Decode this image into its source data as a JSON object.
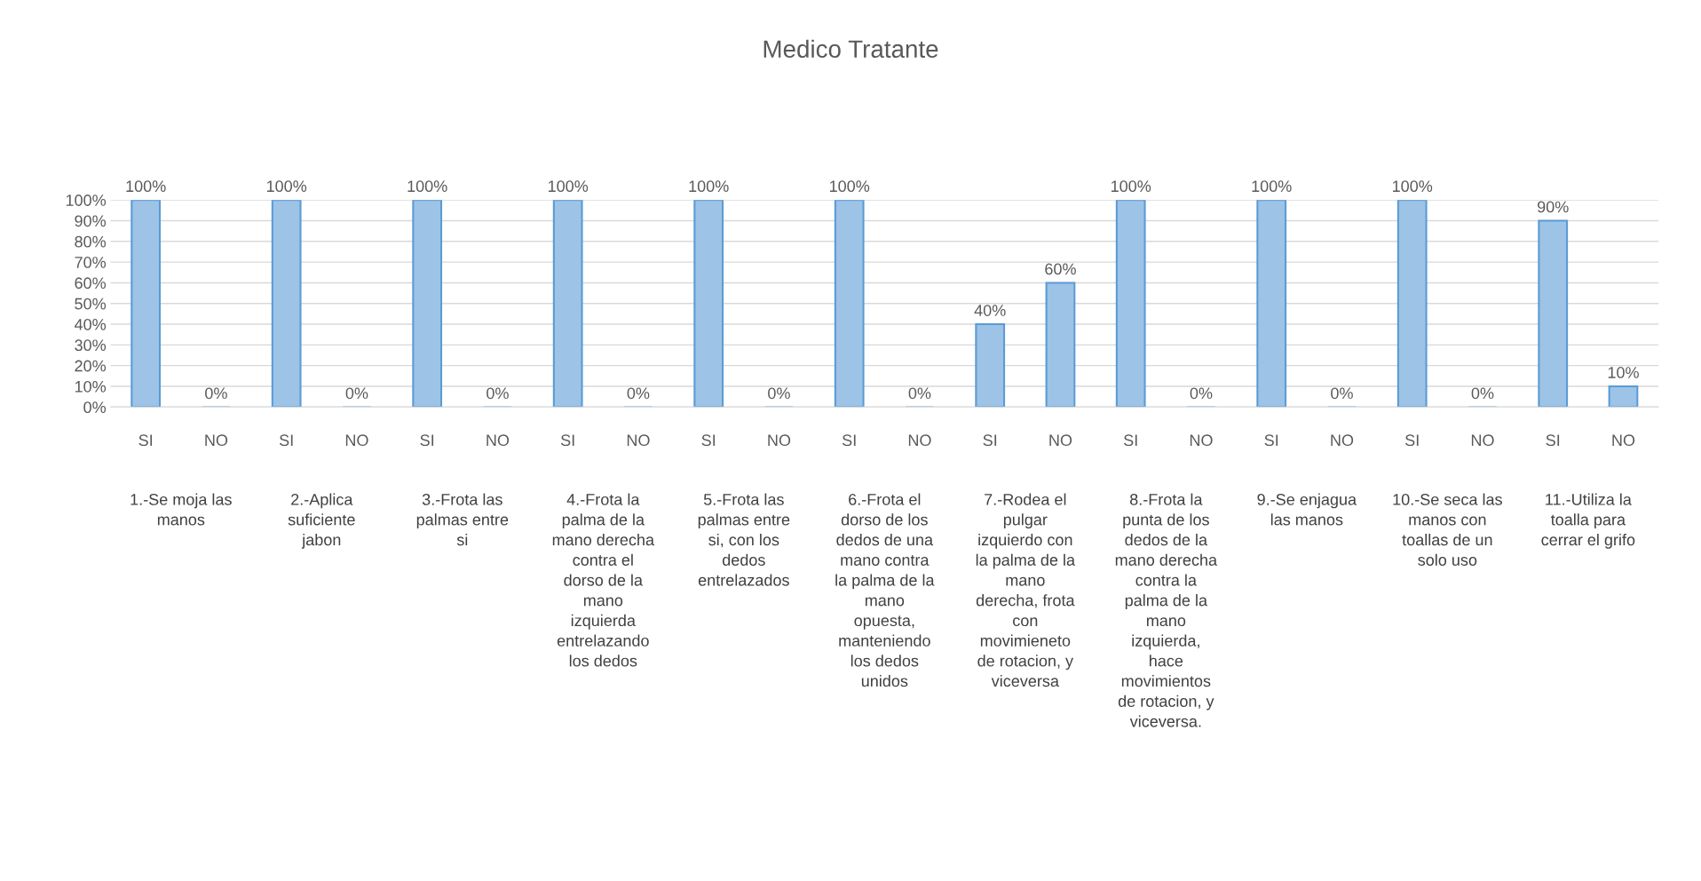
{
  "chart_data": {
    "type": "bar",
    "title": "Medico Tratante",
    "categories": [
      "SI",
      "NO",
      "SI",
      "NO",
      "SI",
      "NO",
      "SI",
      "NO",
      "SI",
      "NO",
      "SI",
      "NO",
      "SI",
      "NO",
      "SI",
      "NO",
      "SI",
      "NO",
      "SI",
      "NO",
      "SI",
      "NO"
    ],
    "values": [
      100,
      0,
      100,
      0,
      100,
      0,
      100,
      0,
      100,
      0,
      100,
      0,
      40,
      60,
      100,
      0,
      100,
      0,
      100,
      0,
      90,
      10
    ],
    "value_labels": [
      "100%",
      "0%",
      "100%",
      "0%",
      "100%",
      "0%",
      "100%",
      "0%",
      "100%",
      "0%",
      "100%",
      "0%",
      "40%",
      "60%",
      "100%",
      "0%",
      "100%",
      "0%",
      "100%",
      "0%",
      "90%",
      "10%"
    ],
    "color": "#9dc3e6",
    "ylim": [
      0,
      100
    ],
    "yticks": [
      {
        "value": 0,
        "label": "0%"
      },
      {
        "value": 10,
        "label": "10%"
      },
      {
        "value": 20,
        "label": "20%"
      },
      {
        "value": 30,
        "label": "30%"
      },
      {
        "value": 40,
        "label": "40%"
      },
      {
        "value": 50,
        "label": "50%"
      },
      {
        "value": 60,
        "label": "60%"
      },
      {
        "value": 70,
        "label": "70%"
      },
      {
        "value": 80,
        "label": "80%"
      },
      {
        "value": 90,
        "label": "90%"
      },
      {
        "value": 100,
        "label": "100%"
      }
    ],
    "grid": "y",
    "annotations": [
      "1.-Se moja las\nmanos",
      "2.-Aplica\nsuficiente\njabon",
      "3.-Frota las\npalmas entre\nsi",
      "4.-Frota la\npalma de la\nmano derecha\ncontra el\ndorso de la\nmano\nizquierda\nentrelazando\nlos dedos",
      "5.-Frota las\npalmas entre\nsi, con los\ndedos\nentrelazados",
      "6.-Frota el\ndorso de los\ndedos de una\nmano contra\nla palma de la\nmano\nopuesta,\nmanteniendo\nlos dedos\nunidos",
      "7.-Rodea el\npulgar\nizquierdo con\nla palma de la\nmano\nderecha, frota\ncon\nmovimieneto\nde rotacion, y\nviceversa",
      "8.-Frota la\npunta de los\ndedos de la\nmano derecha\ncontra la\npalma de la\nmano\nizquierda,\nhace\nmovimientos\nde rotacion, y\nviceversa.",
      "9.-Se enjagua\nlas manos",
      "10.-Se seca las\nmanos con\ntoallas de un\nsolo uso",
      "11.-Utiliza la\ntoalla para\ncerrar el grifo"
    ]
  }
}
